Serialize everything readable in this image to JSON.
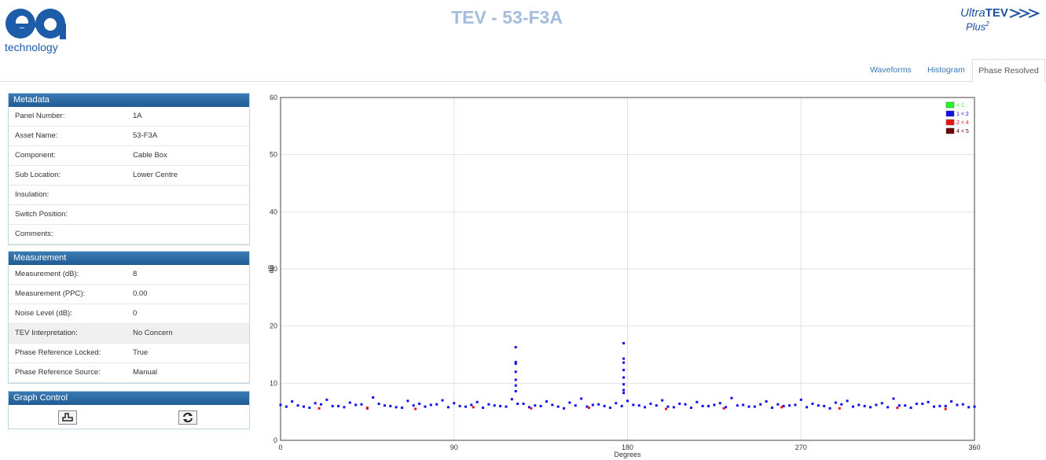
{
  "header": {
    "logo_text": "technology",
    "title": "TEV - 53-F3A",
    "brand_ultra": "Ultra",
    "brand_tev": "TEV",
    "brand_plus": "Plus",
    "brand_sup": "2"
  },
  "tabs": [
    "Waveforms",
    "Histogram",
    "Phase Resolved"
  ],
  "metadata": {
    "title": "Metadata",
    "rows": [
      {
        "label": "Panel Number:",
        "value": "1A"
      },
      {
        "label": "Asset Name:",
        "value": "53-F3A"
      },
      {
        "label": "Component:",
        "value": "Cable Box"
      },
      {
        "label": "Sub Location:",
        "value": "Lower Centre"
      },
      {
        "label": "Insulation:"
      },
      {
        "label": "Switch Position:"
      },
      {
        "label": "Comments:"
      }
    ]
  },
  "measurement": {
    "title": "Measurement",
    "rows": [
      {
        "label": "Measurement (dB):",
        "value": "8"
      },
      {
        "label": "Measurement (PPC):",
        "value": "0.00"
      },
      {
        "label": "Noise Level (dB):",
        "value": "0"
      },
      {
        "label": "TEV Interpretation:",
        "value": "No Concern"
      },
      {
        "label": "Phase Reference Locked:",
        "value": "True"
      },
      {
        "label": "Phase Reference Source:",
        "value": "Manual"
      }
    ]
  },
  "graph_control": {
    "title": "Graph Control"
  },
  "chart_data": {
    "type": "scatter",
    "xlabel": "Degrees",
    "ylabel": "dB",
    "xlim": [
      0,
      360
    ],
    "ylim": [
      0,
      60
    ],
    "xticks": [
      0,
      90,
      180,
      270,
      360
    ],
    "yticks": [
      0,
      10,
      20,
      30,
      40,
      50,
      60
    ],
    "grid": true,
    "legend": "top-right",
    "series": [
      {
        "name": "< 1",
        "color": "#22ff22",
        "x": [],
        "values": []
      },
      {
        "name": "1 < 2",
        "color": "#1010ee",
        "x": [
          0,
          6,
          12,
          18,
          24,
          30,
          36,
          42,
          48,
          54,
          60,
          66,
          72,
          78,
          84,
          90,
          96,
          102,
          108,
          114,
          120,
          126,
          132,
          138,
          144,
          150,
          156,
          162,
          168,
          174,
          180,
          186,
          192,
          198,
          204,
          210,
          216,
          222,
          228,
          234,
          240,
          246,
          252,
          258,
          264,
          270,
          276,
          282,
          288,
          294,
          300,
          306,
          312,
          318,
          324,
          330,
          336,
          342,
          348,
          354,
          360,
          3,
          9,
          15,
          21,
          27,
          33,
          39,
          45,
          51,
          57,
          63,
          69,
          75,
          81,
          87,
          93,
          99,
          105,
          111,
          117,
          123,
          129,
          135,
          141,
          147,
          153,
          159,
          165,
          171,
          177,
          183,
          189,
          195,
          201,
          207,
          213,
          219,
          225,
          231,
          237,
          243,
          249,
          255,
          261,
          267,
          273,
          279,
          285,
          291,
          297,
          303,
          309,
          315,
          321,
          327,
          333,
          339,
          345,
          351,
          357,
          122,
          122,
          122,
          122,
          122,
          122,
          122,
          178,
          178,
          178,
          178,
          178,
          178,
          178,
          178
        ],
        "values": [
          6.2,
          6.8,
          5.9,
          6.5,
          7.1,
          6.0,
          6.6,
          6.3,
          7.5,
          6.1,
          5.8,
          6.9,
          6.4,
          6.2,
          7.0,
          6.5,
          5.9,
          6.7,
          6.3,
          6.0,
          7.2,
          6.4,
          6.1,
          6.8,
          5.9,
          6.6,
          7.3,
          6.2,
          6.0,
          6.5,
          6.9,
          6.1,
          6.4,
          7.0,
          5.8,
          6.3,
          6.7,
          6.0,
          6.5,
          7.4,
          6.2,
          5.9,
          6.8,
          6.3,
          6.1,
          7.1,
          6.4,
          6.0,
          6.6,
          6.9,
          6.2,
          5.8,
          6.5,
          7.3,
          6.1,
          6.4,
          6.7,
          6.0,
          6.8,
          6.3,
          5.9,
          5.9,
          6.1,
          5.7,
          6.3,
          6.0,
          5.8,
          6.2,
          5.6,
          6.4,
          6.0,
          5.7,
          6.1,
          5.9,
          6.3,
          5.8,
          6.0,
          6.2,
          5.7,
          6.1,
          5.9,
          6.4,
          5.8,
          6.0,
          6.2,
          5.6,
          6.1,
          5.9,
          6.3,
          5.7,
          6.0,
          6.2,
          5.8,
          6.1,
          5.9,
          6.4,
          5.7,
          6.0,
          6.2,
          5.8,
          6.1,
          5.9,
          6.3,
          5.7,
          6.0,
          6.2,
          5.8,
          6.1,
          5.6,
          6.3,
          5.9,
          6.0,
          6.2,
          5.8,
          6.1,
          5.7,
          6.4,
          5.9,
          6.0,
          6.2,
          5.8,
          16.3,
          13.7,
          13.4,
          12.0,
          10.6,
          9.6,
          8.6,
          17.0,
          14.3,
          13.6,
          12.3,
          11.0,
          9.8,
          8.8,
          8.3
        ]
      },
      {
        "name": "2 < 4",
        "color": "#ee1111",
        "x": [
          20,
          45,
          70,
          100,
          130,
          160,
          200,
          230,
          260,
          290,
          320,
          345
        ],
        "values": [
          5.6,
          5.7,
          5.5,
          5.8,
          5.6,
          5.7,
          5.5,
          5.6,
          5.8,
          5.6,
          5.7,
          5.5
        ]
      },
      {
        "name": "4 < 5",
        "color": "#660000",
        "x": [],
        "values": []
      }
    ]
  }
}
